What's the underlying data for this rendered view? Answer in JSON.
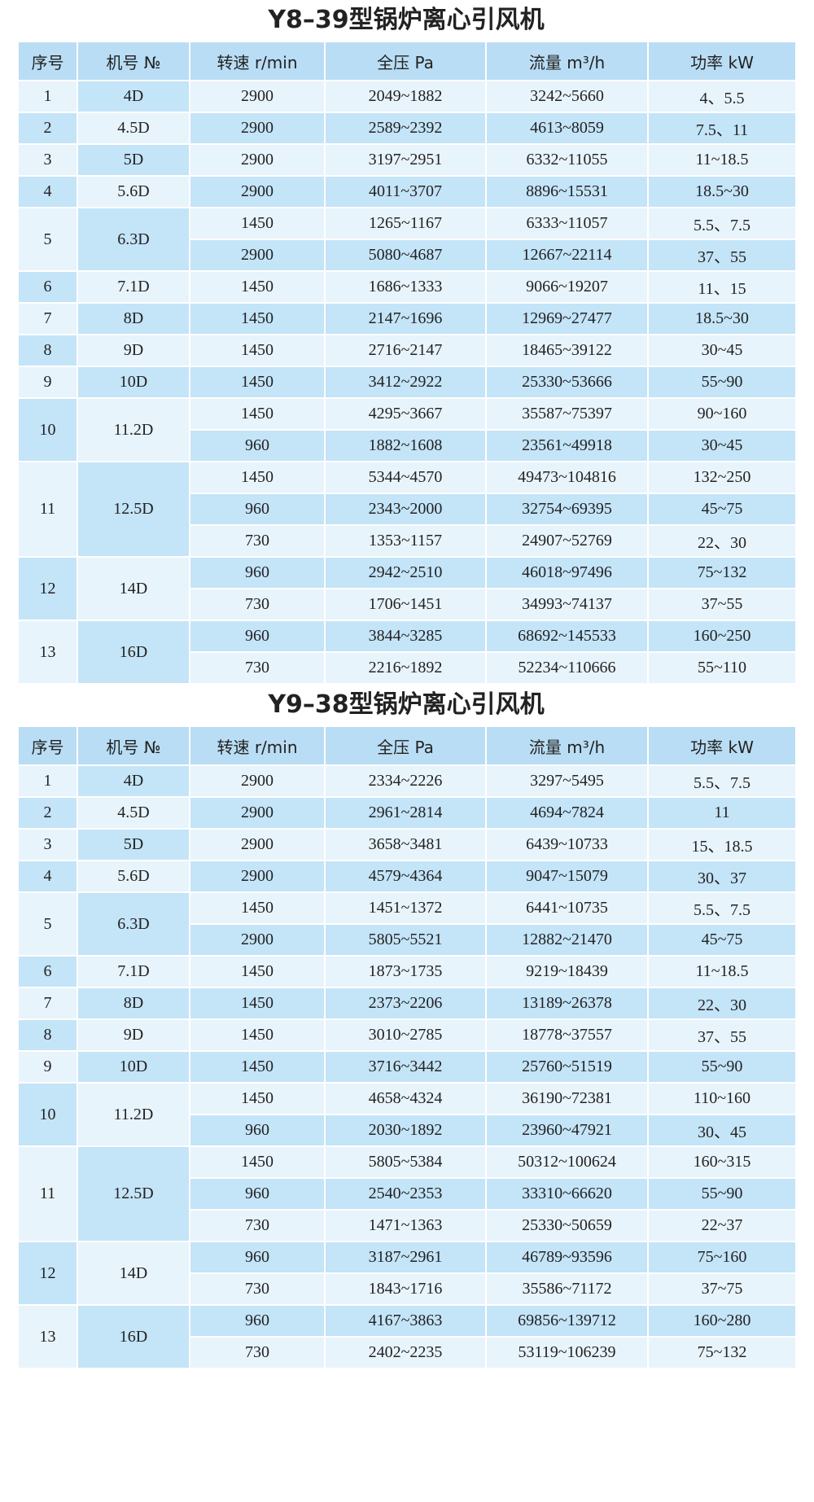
{
  "tables": [
    {
      "title": "Y8–39型锅炉离心引风机",
      "header": [
        "序号",
        "机号 №",
        "转速 r/min",
        "全压 Pa",
        "流量 m³/h",
        "功率 kW"
      ],
      "groups": [
        {
          "no": "1",
          "model": "4D",
          "rows": [
            [
              "2900",
              "2049~1882",
              "3242~5660",
              "4、5.5"
            ]
          ]
        },
        {
          "no": "2",
          "model": "4.5D",
          "rows": [
            [
              "2900",
              "2589~2392",
              "4613~8059",
              "7.5、11"
            ]
          ]
        },
        {
          "no": "3",
          "model": "5D",
          "rows": [
            [
              "2900",
              "3197~2951",
              "6332~11055",
              "11~18.5"
            ]
          ]
        },
        {
          "no": "4",
          "model": "5.6D",
          "rows": [
            [
              "2900",
              "4011~3707",
              "8896~15531",
              "18.5~30"
            ]
          ]
        },
        {
          "no": "5",
          "model": "6.3D",
          "rows": [
            [
              "1450",
              "1265~1167",
              "6333~11057",
              "5.5、7.5"
            ],
            [
              "2900",
              "5080~4687",
              "12667~22114",
              "37、55"
            ]
          ]
        },
        {
          "no": "6",
          "model": "7.1D",
          "rows": [
            [
              "1450",
              "1686~1333",
              "9066~19207",
              "11、15"
            ]
          ]
        },
        {
          "no": "7",
          "model": "8D",
          "rows": [
            [
              "1450",
              "2147~1696",
              "12969~27477",
              "18.5~30"
            ]
          ]
        },
        {
          "no": "8",
          "model": "9D",
          "rows": [
            [
              "1450",
              "2716~2147",
              "18465~39122",
              "30~45"
            ]
          ]
        },
        {
          "no": "9",
          "model": "10D",
          "rows": [
            [
              "1450",
              "3412~2922",
              "25330~53666",
              "55~90"
            ]
          ]
        },
        {
          "no": "10",
          "model": "11.2D",
          "rows": [
            [
              "1450",
              "4295~3667",
              "35587~75397",
              "90~160"
            ],
            [
              "960",
              "1882~1608",
              "23561~49918",
              "30~45"
            ]
          ]
        },
        {
          "no": "11",
          "model": "12.5D",
          "rows": [
            [
              "1450",
              "5344~4570",
              "49473~104816",
              "132~250"
            ],
            [
              "960",
              "2343~2000",
              "32754~69395",
              "45~75"
            ],
            [
              "730",
              "1353~1157",
              "24907~52769",
              "22、30"
            ]
          ]
        },
        {
          "no": "12",
          "model": "14D",
          "rows": [
            [
              "960",
              "2942~2510",
              "46018~97496",
              "75~132"
            ],
            [
              "730",
              "1706~1451",
              "34993~74137",
              "37~55"
            ]
          ]
        },
        {
          "no": "13",
          "model": "16D",
          "rows": [
            [
              "960",
              "3844~3285",
              "68692~145533",
              "160~250"
            ],
            [
              "730",
              "2216~1892",
              "52234~110666",
              "55~110"
            ]
          ]
        }
      ]
    },
    {
      "title": "Y9–38型锅炉离心引风机",
      "header": [
        "序号",
        "机号 №",
        "转速 r/min",
        "全压 Pa",
        "流量 m³/h",
        "功率 kW"
      ],
      "groups": [
        {
          "no": "1",
          "model": "4D",
          "rows": [
            [
              "2900",
              "2334~2226",
              "3297~5495",
              "5.5、7.5"
            ]
          ]
        },
        {
          "no": "2",
          "model": "4.5D",
          "rows": [
            [
              "2900",
              "2961~2814",
              "4694~7824",
              "11"
            ]
          ]
        },
        {
          "no": "3",
          "model": "5D",
          "rows": [
            [
              "2900",
              "3658~3481",
              "6439~10733",
              "15、18.5"
            ]
          ]
        },
        {
          "no": "4",
          "model": "5.6D",
          "rows": [
            [
              "2900",
              "4579~4364",
              "9047~15079",
              "30、37"
            ]
          ]
        },
        {
          "no": "5",
          "model": "6.3D",
          "rows": [
            [
              "1450",
              "1451~1372",
              "6441~10735",
              "5.5、7.5"
            ],
            [
              "2900",
              "5805~5521",
              "12882~21470",
              "45~75"
            ]
          ]
        },
        {
          "no": "6",
          "model": "7.1D",
          "rows": [
            [
              "1450",
              "1873~1735",
              "9219~18439",
              "11~18.5"
            ]
          ]
        },
        {
          "no": "7",
          "model": "8D",
          "rows": [
            [
              "1450",
              "2373~2206",
              "13189~26378",
              "22、30"
            ]
          ]
        },
        {
          "no": "8",
          "model": "9D",
          "rows": [
            [
              "1450",
              "3010~2785",
              "18778~37557",
              "37、55"
            ]
          ]
        },
        {
          "no": "9",
          "model": "10D",
          "rows": [
            [
              "1450",
              "3716~3442",
              "25760~51519",
              "55~90"
            ]
          ]
        },
        {
          "no": "10",
          "model": "11.2D",
          "rows": [
            [
              "1450",
              "4658~4324",
              "36190~72381",
              "110~160"
            ],
            [
              "960",
              "2030~1892",
              "23960~47921",
              "30、45"
            ]
          ]
        },
        {
          "no": "11",
          "model": "12.5D",
          "rows": [
            [
              "1450",
              "5805~5384",
              "50312~100624",
              "160~315"
            ],
            [
              "960",
              "2540~2353",
              "33310~66620",
              "55~90"
            ],
            [
              "730",
              "1471~1363",
              "25330~50659",
              "22~37"
            ]
          ]
        },
        {
          "no": "12",
          "model": "14D",
          "rows": [
            [
              "960",
              "3187~2961",
              "46789~93596",
              "75~160"
            ],
            [
              "730",
              "1843~1716",
              "35586~71172",
              "37~75"
            ]
          ]
        },
        {
          "no": "13",
          "model": "16D",
          "rows": [
            [
              "960",
              "4167~3863",
              "69856~139712",
              "160~280"
            ],
            [
              "730",
              "2402~2235",
              "53119~106239",
              "75~132"
            ]
          ]
        }
      ]
    }
  ]
}
